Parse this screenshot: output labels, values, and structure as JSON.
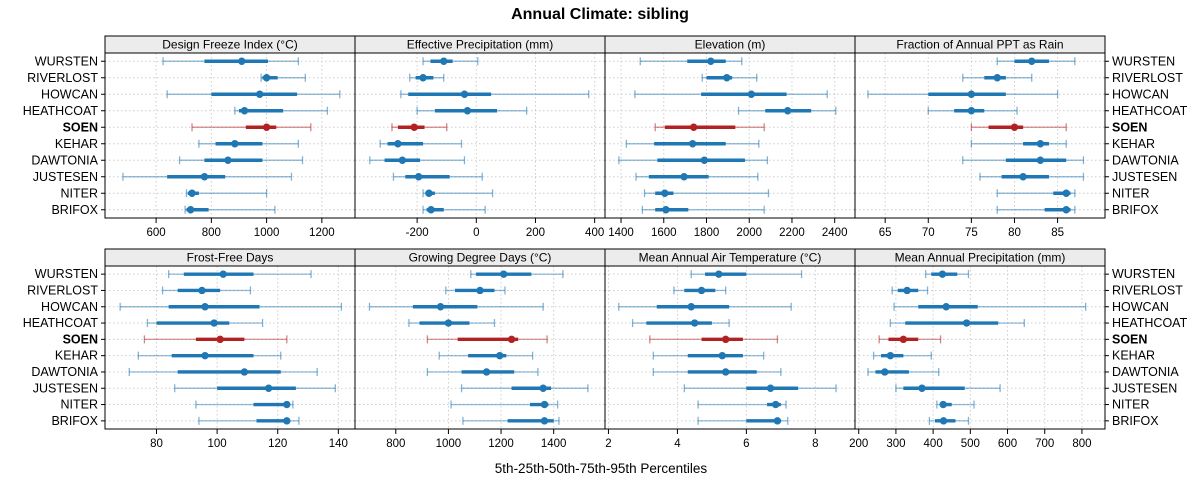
{
  "chart_data": {
    "type": "scatter",
    "subtype": "multi-panel percentile interval dotplot (whisker = 5th-95th, thick bar = 25th-75th, dot = median)",
    "title": "Annual Climate: sibling",
    "xlabel": "5th-25th-50th-75th-95th Percentiles",
    "grid": true,
    "legend_position": "none",
    "stations": [
      "WURSTEN",
      "RIVERLOST",
      "HOWCAN",
      "HEATHCOAT",
      "SOEN",
      "KEHAR",
      "DAWTONIA",
      "JUSTESEN",
      "NITER",
      "BRIFOX"
    ],
    "highlight_station": "SOEN",
    "percentile_labels": [
      "p5",
      "p25",
      "p50",
      "p75",
      "p95"
    ],
    "colors": {
      "default": "#1f77b4",
      "highlight": "#b22222",
      "strip_bg": "#ececec",
      "grid": "#cdcdcd",
      "border": "#000000",
      "text": "#000000"
    },
    "panels": [
      {
        "title": "Design Freeze Index (°C)",
        "ticks": [
          600,
          800,
          1000,
          1200
        ],
        "xlim": [
          415,
          1320
        ],
        "values": [
          [
            625,
            775,
            910,
            1005,
            1115
          ],
          [
            980,
            985,
            1000,
            1040,
            1140
          ],
          [
            640,
            800,
            975,
            1110,
            1265
          ],
          [
            885,
            900,
            920,
            1060,
            1220
          ],
          [
            730,
            925,
            1000,
            1035,
            1160
          ],
          [
            755,
            815,
            885,
            985,
            1115
          ],
          [
            685,
            775,
            860,
            985,
            1130
          ],
          [
            480,
            640,
            775,
            850,
            1090
          ],
          [
            710,
            715,
            730,
            755,
            1000
          ],
          [
            705,
            710,
            725,
            790,
            1030
          ]
        ]
      },
      {
        "title": "Effective Precipitation (mm)",
        "ticks": [
          -200,
          0,
          200,
          400
        ],
        "xlim": [
          -410,
          435
        ],
        "values": [
          [
            -180,
            -155,
            -110,
            -80,
            5
          ],
          [
            -225,
            -205,
            -180,
            -145,
            -110
          ],
          [
            -255,
            -230,
            -40,
            50,
            380
          ],
          [
            -200,
            -140,
            -30,
            70,
            170
          ],
          [
            -285,
            -265,
            -210,
            -175,
            -100
          ],
          [
            -325,
            -300,
            -265,
            -180,
            -50
          ],
          [
            -360,
            -310,
            -250,
            -190,
            -40
          ],
          [
            -280,
            -240,
            -195,
            -90,
            20
          ],
          [
            -180,
            -172,
            -160,
            -140,
            55
          ],
          [
            -180,
            -168,
            -153,
            -110,
            30
          ]
        ]
      },
      {
        "title": "Elevation (m)",
        "ticks": [
          1400,
          1600,
          1800,
          2000,
          2200,
          2400
        ],
        "xlim": [
          1325,
          2495
        ],
        "values": [
          [
            1490,
            1710,
            1820,
            1890,
            1965
          ],
          [
            1780,
            1800,
            1895,
            1920,
            2035
          ],
          [
            1465,
            1775,
            2010,
            2175,
            2365
          ],
          [
            1950,
            2075,
            2180,
            2290,
            2405
          ],
          [
            1560,
            1605,
            1740,
            1935,
            2070
          ],
          [
            1425,
            1555,
            1735,
            1890,
            2045
          ],
          [
            1390,
            1570,
            1790,
            1980,
            2085
          ],
          [
            1470,
            1530,
            1695,
            1810,
            2040
          ],
          [
            1510,
            1560,
            1605,
            1645,
            2090
          ],
          [
            1500,
            1560,
            1610,
            1715,
            2070
          ]
        ]
      },
      {
        "title": "Fraction of Annual PPT as Rain",
        "ticks": [
          65,
          70,
          75,
          80,
          85
        ],
        "xlim": [
          61.5,
          90.5
        ],
        "values": [
          [
            78,
            80,
            82,
            84,
            87
          ],
          [
            74,
            76.5,
            78,
            79,
            82
          ],
          [
            63,
            70,
            75,
            79,
            85
          ],
          [
            70,
            73,
            75,
            76.5,
            80.3
          ],
          [
            75,
            77,
            80,
            81,
            86
          ],
          [
            75,
            81,
            83,
            84,
            86
          ],
          [
            74,
            79,
            83,
            86,
            88
          ],
          [
            76,
            78.5,
            81,
            84,
            88
          ],
          [
            78,
            84.5,
            86,
            86.5,
            87
          ],
          [
            78,
            83.5,
            86,
            86.5,
            87
          ]
        ]
      },
      {
        "title": "Frost-Free Days",
        "ticks": [
          80,
          100,
          120,
          140
        ],
        "xlim": [
          63,
          145.5
        ],
        "values": [
          [
            84,
            89,
            102,
            112,
            131
          ],
          [
            82,
            87,
            95,
            101,
            111
          ],
          [
            68,
            84,
            96,
            114,
            141
          ],
          [
            77,
            80,
            99,
            104,
            115
          ],
          [
            76,
            93,
            101,
            109,
            123
          ],
          [
            74,
            85,
            96,
            112,
            121
          ],
          [
            71,
            87,
            109,
            121,
            133
          ],
          [
            86,
            100,
            117,
            126,
            139
          ],
          [
            93,
            112,
            123,
            124,
            125
          ],
          [
            94,
            113,
            123,
            124,
            127
          ]
        ]
      },
      {
        "title": "Growing Degree Days (°C)",
        "ticks": [
          800,
          1000,
          1200,
          1400
        ],
        "xlim": [
          645,
          1595
        ],
        "values": [
          [
            1085,
            1105,
            1210,
            1315,
            1435
          ],
          [
            990,
            1025,
            1120,
            1175,
            1215
          ],
          [
            700,
            865,
            970,
            1110,
            1360
          ],
          [
            850,
            890,
            1000,
            1080,
            1175
          ],
          [
            920,
            1035,
            1240,
            1265,
            1375
          ],
          [
            965,
            1075,
            1195,
            1220,
            1320
          ],
          [
            920,
            1050,
            1145,
            1250,
            1340
          ],
          [
            1050,
            1240,
            1360,
            1390,
            1530
          ],
          [
            1010,
            1310,
            1365,
            1380,
            1415
          ],
          [
            1055,
            1225,
            1365,
            1400,
            1420
          ]
        ]
      },
      {
        "title": "Mean Annual Air Temperature (°C)",
        "ticks": [
          2,
          4,
          6,
          8
        ],
        "xlim": [
          1.9,
          9.15
        ],
        "values": [
          [
            4.4,
            4.8,
            5.2,
            6.0,
            7.6
          ],
          [
            3.9,
            4.2,
            4.7,
            5.1,
            5.4
          ],
          [
            2.3,
            3.4,
            4.4,
            5.5,
            7.3
          ],
          [
            2.7,
            3.1,
            4.5,
            5.0,
            5.5
          ],
          [
            3.2,
            4.7,
            5.4,
            5.9,
            6.9
          ],
          [
            3.3,
            4.3,
            5.3,
            5.9,
            6.5
          ],
          [
            3.3,
            4.3,
            5.4,
            6.3,
            7.0
          ],
          [
            4.2,
            6.0,
            6.7,
            7.5,
            8.6
          ],
          [
            4.6,
            6.6,
            6.85,
            7.0,
            7.15
          ],
          [
            4.6,
            6.0,
            6.9,
            7.0,
            7.2
          ]
        ]
      },
      {
        "title": "Mean Annual Precipitation (mm)",
        "ticks": [
          200,
          300,
          400,
          500,
          600,
          700,
          800
        ],
        "xlim": [
          190,
          862
        ],
        "values": [
          [
            380,
            395,
            425,
            465,
            495
          ],
          [
            290,
            305,
            330,
            360,
            385
          ],
          [
            295,
            360,
            435,
            520,
            810
          ],
          [
            285,
            325,
            490,
            575,
            645
          ],
          [
            255,
            280,
            320,
            360,
            420
          ],
          [
            240,
            260,
            285,
            320,
            395
          ],
          [
            225,
            245,
            270,
            335,
            415
          ],
          [
            300,
            320,
            370,
            485,
            580
          ],
          [
            410,
            420,
            427,
            450,
            510
          ],
          [
            390,
            405,
            428,
            460,
            495
          ]
        ]
      }
    ]
  }
}
